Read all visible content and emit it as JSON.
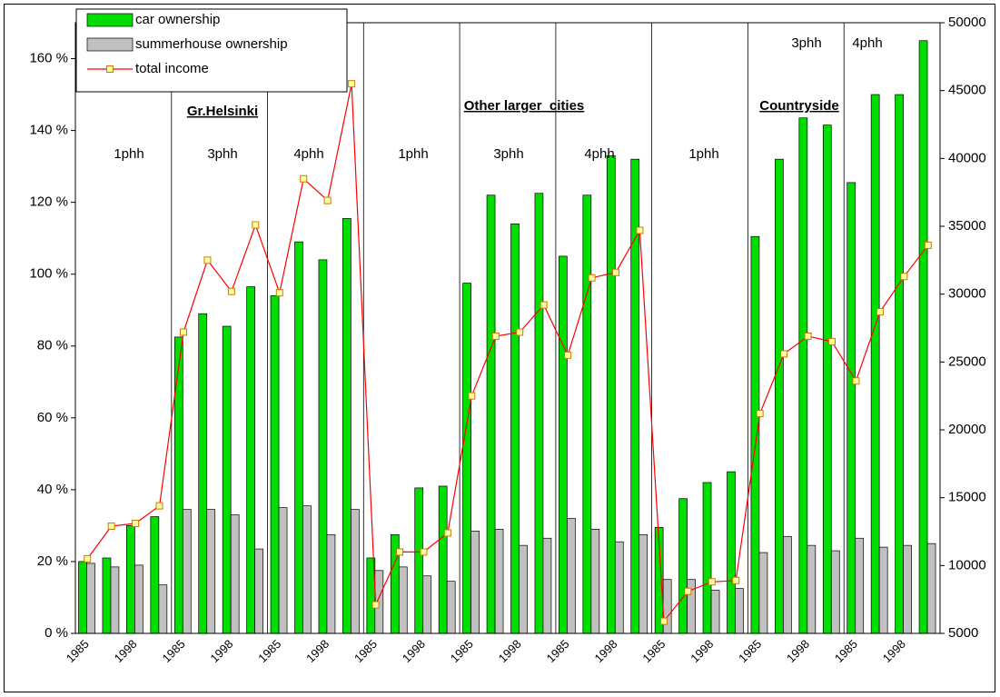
{
  "chart_data": {
    "type": "bar",
    "categories": [
      "1985",
      null,
      "1998",
      null,
      "1985",
      null,
      "1998",
      null,
      "1985",
      null,
      "1998",
      null,
      "1985",
      null,
      "1998",
      null,
      "1985",
      null,
      "1998",
      null,
      "1985",
      null,
      "1998",
      null,
      "1985",
      null,
      "1998",
      null,
      "1985",
      null,
      "1998",
      null,
      "1985",
      null,
      "1998",
      null
    ],
    "series": [
      {
        "name": "car ownership",
        "color": "#00dd00",
        "values": [
          20,
          21,
          30,
          32.5,
          82.5,
          89,
          85.5,
          96.5,
          94,
          109,
          104,
          115.5,
          21,
          27.5,
          40.5,
          41,
          97.5,
          122,
          114,
          122.5,
          105,
          122,
          133,
          132,
          29.5,
          37.5,
          42,
          45,
          110.5,
          132,
          143.5,
          141.5,
          125.5,
          150,
          150,
          165
        ]
      },
      {
        "name": "summerhouse ownership",
        "color": "#c0c0c0",
        "values": [
          19.5,
          18.5,
          19,
          13.5,
          34.5,
          34.5,
          33,
          23.5,
          35,
          35.5,
          27.5,
          34.5,
          17.5,
          18.5,
          16,
          14.5,
          28.5,
          29,
          24.5,
          26.5,
          32,
          29,
          25.5,
          27.5,
          15,
          15,
          12,
          12.5,
          22.5,
          27,
          24.5,
          23,
          26.5,
          24,
          24.5,
          25
        ]
      },
      {
        "name": "total income",
        "type": "line",
        "axis": "y2",
        "color": "#ff0000",
        "values": [
          10500,
          12900,
          13100,
          14400,
          27200,
          32500,
          30200,
          35100,
          30100,
          38500,
          36900,
          45500,
          7100,
          11000,
          11000,
          12400,
          22500,
          26900,
          27200,
          29200,
          25500,
          31200,
          31600,
          34700,
          5900,
          8100,
          8800,
          8900,
          21200,
          25600,
          26900,
          26500,
          23600,
          28700,
          31300,
          33600
        ]
      }
    ],
    "ylim": [
      0,
      170
    ],
    "yticks": [
      {
        "value": 0,
        "label": "0 %"
      },
      {
        "value": 20,
        "label": "20 %"
      },
      {
        "value": 40,
        "label": "40 %"
      },
      {
        "value": 60,
        "label": "60 %"
      },
      {
        "value": 80,
        "label": "80 %"
      },
      {
        "value": 100,
        "label": "100 %"
      },
      {
        "value": 120,
        "label": "120 %"
      },
      {
        "value": 140,
        "label": "140 %"
      },
      {
        "value": 160,
        "label": "160 %"
      }
    ],
    "y2lim": [
      5000,
      50000
    ],
    "y2ticks": [
      5000,
      10000,
      15000,
      20000,
      25000,
      30000,
      35000,
      40000,
      45000,
      50000
    ],
    "legend": "upper left",
    "annotations": [
      "Gr.Helsinki",
      "Other larger  cities",
      "Countryside",
      "1phh",
      "3phh",
      "4phh",
      "1phh",
      "3phh",
      "4phh",
      "1phh",
      "3phh",
      "4phh"
    ]
  }
}
